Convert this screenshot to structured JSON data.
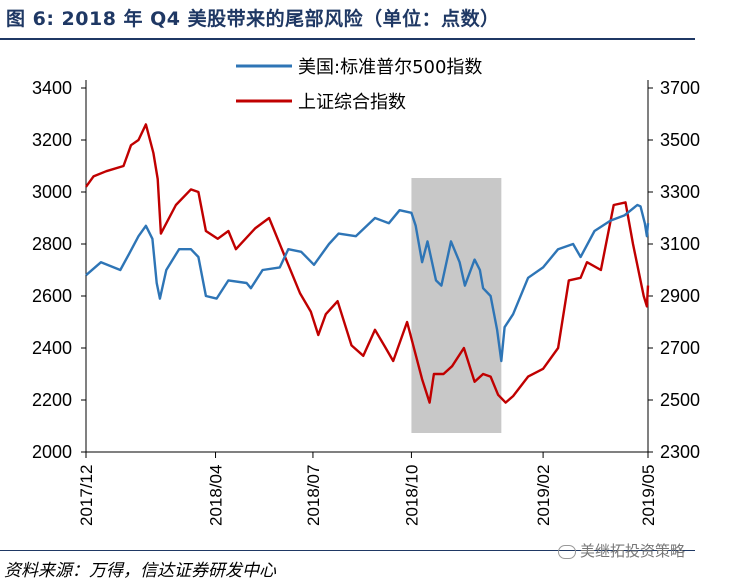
{
  "page": {
    "title": "图 6:  2018 年 Q4 美股带来的尾部风险（单位：点数）",
    "source": "资料来源：万得，信达证券研发中心",
    "watermark": "美继拓投资策略"
  },
  "chart_data": {
    "type": "line",
    "title": "",
    "x_ticks": [
      "2017/12",
      "2018/04",
      "2018/07",
      "2018/10",
      "2019/02",
      "2019/05"
    ],
    "x_range": [
      "2017-12-01",
      "2019-05-10"
    ],
    "y_left": {
      "ylim": [
        2000,
        3400
      ],
      "ticks": [
        2000,
        2200,
        2400,
        2600,
        2800,
        3000,
        3200,
        3400
      ]
    },
    "y_right": {
      "ylim": [
        2300,
        3700
      ],
      "ticks": [
        2300,
        2500,
        2700,
        2900,
        3100,
        3300,
        3500,
        3700
      ]
    },
    "shaded_region": {
      "from": "2018-10-01",
      "to": "2018-12-24",
      "color": "#c8c8c8"
    },
    "legend": "top-center",
    "series": [
      {
        "name": "美国:标准普尔500指数",
        "axis": "left",
        "color": "#2e75b6",
        "points": [
          [
            "2017-12-01",
            2680
          ],
          [
            "2017-12-15",
            2730
          ],
          [
            "2018-01-02",
            2700
          ],
          [
            "2018-01-10",
            2760
          ],
          [
            "2018-01-19",
            2830
          ],
          [
            "2018-01-26",
            2870
          ],
          [
            "2018-02-01",
            2820
          ],
          [
            "2018-02-05",
            2650
          ],
          [
            "2018-02-08",
            2590
          ],
          [
            "2018-02-14",
            2700
          ],
          [
            "2018-02-26",
            2780
          ],
          [
            "2018-03-09",
            2780
          ],
          [
            "2018-03-16",
            2750
          ],
          [
            "2018-03-23",
            2600
          ],
          [
            "2018-04-02",
            2590
          ],
          [
            "2018-04-13",
            2660
          ],
          [
            "2018-04-30",
            2650
          ],
          [
            "2018-05-04",
            2630
          ],
          [
            "2018-05-15",
            2700
          ],
          [
            "2018-05-31",
            2710
          ],
          [
            "2018-06-08",
            2780
          ],
          [
            "2018-06-20",
            2770
          ],
          [
            "2018-07-02",
            2720
          ],
          [
            "2018-07-16",
            2800
          ],
          [
            "2018-07-25",
            2840
          ],
          [
            "2018-08-10",
            2830
          ],
          [
            "2018-08-28",
            2900
          ],
          [
            "2018-09-10",
            2880
          ],
          [
            "2018-09-20",
            2930
          ],
          [
            "2018-10-01",
            2920
          ],
          [
            "2018-10-05",
            2870
          ],
          [
            "2018-10-11",
            2730
          ],
          [
            "2018-10-16",
            2810
          ],
          [
            "2018-10-24",
            2660
          ],
          [
            "2018-10-29",
            2640
          ],
          [
            "2018-11-07",
            2810
          ],
          [
            "2018-11-15",
            2730
          ],
          [
            "2018-11-20",
            2640
          ],
          [
            "2018-11-29",
            2740
          ],
          [
            "2018-12-04",
            2700
          ],
          [
            "2018-12-07",
            2630
          ],
          [
            "2018-12-14",
            2600
          ],
          [
            "2018-12-20",
            2470
          ],
          [
            "2018-12-24",
            2350
          ],
          [
            "2018-12-27",
            2480
          ],
          [
            "2019-01-04",
            2530
          ],
          [
            "2019-01-18",
            2670
          ],
          [
            "2019-02-01",
            2710
          ],
          [
            "2019-02-15",
            2780
          ],
          [
            "2019-03-01",
            2800
          ],
          [
            "2019-03-08",
            2750
          ],
          [
            "2019-03-21",
            2850
          ],
          [
            "2019-04-05",
            2890
          ],
          [
            "2019-04-18",
            2910
          ],
          [
            "2019-04-30",
            2950
          ],
          [
            "2019-05-03",
            2945
          ],
          [
            "2019-05-07",
            2880
          ],
          [
            "2019-05-09",
            2830
          ],
          [
            "2019-05-10",
            2880
          ]
        ]
      },
      {
        "name": "上证综合指数",
        "axis": "right",
        "color": "#c00000",
        "points": [
          [
            "2017-12-01",
            3320
          ],
          [
            "2017-12-08",
            3360
          ],
          [
            "2017-12-20",
            3380
          ],
          [
            "2018-01-05",
            3400
          ],
          [
            "2018-01-12",
            3480
          ],
          [
            "2018-01-19",
            3500
          ],
          [
            "2018-01-26",
            3560
          ],
          [
            "2018-02-02",
            3450
          ],
          [
            "2018-02-06",
            3350
          ],
          [
            "2018-02-09",
            3140
          ],
          [
            "2018-02-23",
            3250
          ],
          [
            "2018-03-09",
            3310
          ],
          [
            "2018-03-16",
            3300
          ],
          [
            "2018-03-23",
            3150
          ],
          [
            "2018-04-03",
            3120
          ],
          [
            "2018-04-13",
            3150
          ],
          [
            "2018-04-20",
            3080
          ],
          [
            "2018-05-08",
            3160
          ],
          [
            "2018-05-21",
            3200
          ],
          [
            "2018-06-01",
            3090
          ],
          [
            "2018-06-19",
            2910
          ],
          [
            "2018-06-29",
            2840
          ],
          [
            "2018-07-06",
            2750
          ],
          [
            "2018-07-13",
            2830
          ],
          [
            "2018-07-24",
            2880
          ],
          [
            "2018-08-06",
            2710
          ],
          [
            "2018-08-17",
            2670
          ],
          [
            "2018-08-28",
            2770
          ],
          [
            "2018-09-07",
            2700
          ],
          [
            "2018-09-14",
            2650
          ],
          [
            "2018-09-27",
            2800
          ],
          [
            "2018-10-11",
            2580
          ],
          [
            "2018-10-18",
            2490
          ],
          [
            "2018-10-22",
            2600
          ],
          [
            "2018-10-31",
            2600
          ],
          [
            "2018-11-08",
            2630
          ],
          [
            "2018-11-19",
            2700
          ],
          [
            "2018-11-29",
            2570
          ],
          [
            "2018-12-07",
            2600
          ],
          [
            "2018-12-14",
            2590
          ],
          [
            "2018-12-21",
            2520
          ],
          [
            "2018-12-28",
            2490
          ],
          [
            "2019-01-04",
            2515
          ],
          [
            "2019-01-18",
            2590
          ],
          [
            "2019-02-01",
            2620
          ],
          [
            "2019-02-15",
            2700
          ],
          [
            "2019-02-25",
            2960
          ],
          [
            "2019-03-08",
            2970
          ],
          [
            "2019-03-14",
            3030
          ],
          [
            "2019-03-27",
            3000
          ],
          [
            "2019-04-08",
            3250
          ],
          [
            "2019-04-19",
            3260
          ],
          [
            "2019-04-26",
            3100
          ],
          [
            "2019-05-06",
            2900
          ],
          [
            "2019-05-09",
            2860
          ],
          [
            "2019-05-10",
            2940
          ]
        ]
      }
    ]
  }
}
